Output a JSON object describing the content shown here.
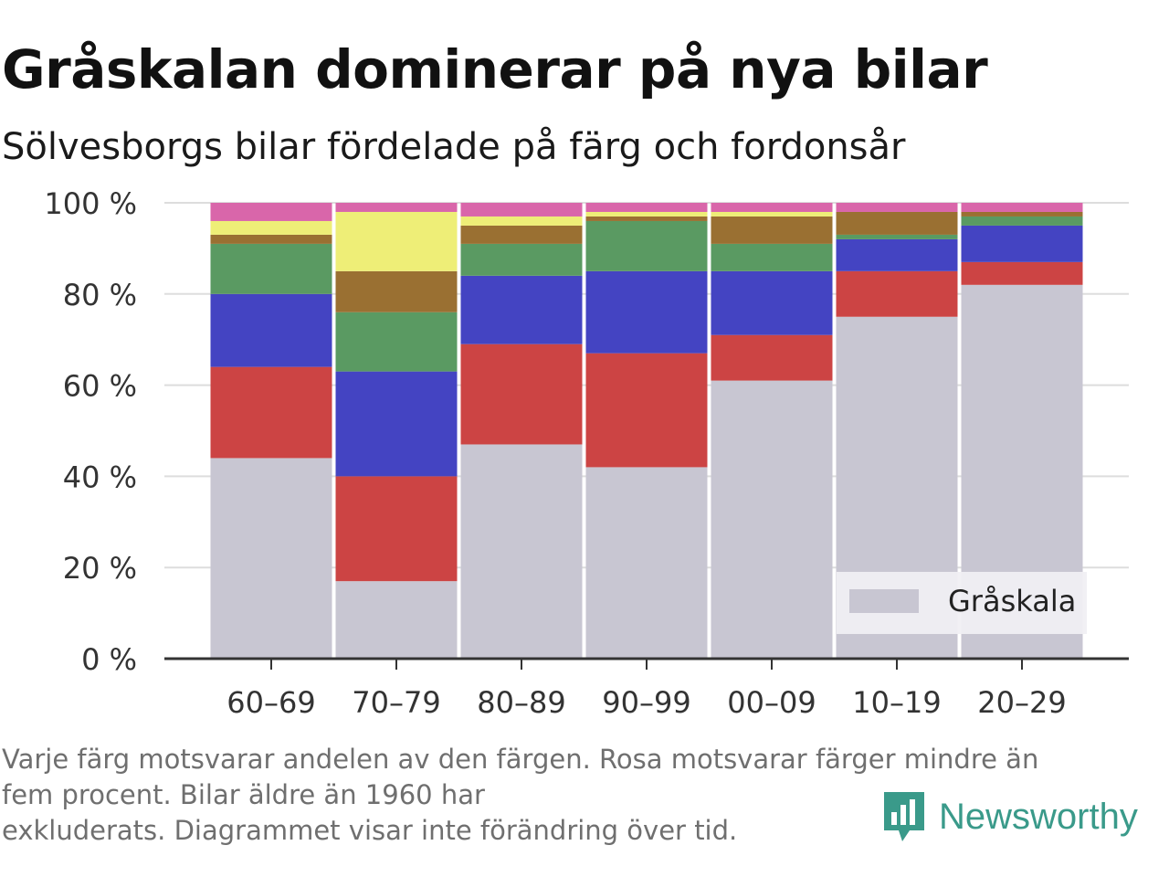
{
  "header": {
    "title": "Gråskalan dominerar på nya bilar",
    "subtitle": "Sölvesborgs bilar fördelade på färg och fordonsår"
  },
  "chart_data": {
    "type": "bar",
    "stacked": true,
    "categories": [
      "60–69",
      "70–79",
      "80–89",
      "90–99",
      "00–09",
      "10–19",
      "20–29"
    ],
    "y_ticks": [
      "0 %",
      "20 %",
      "40 %",
      "60 %",
      "80 %",
      "100 %"
    ],
    "ylim": [
      0,
      100
    ],
    "grid": "horizontal",
    "legend": {
      "position": "bottom-right",
      "entries": [
        "Gråskala"
      ]
    },
    "series": [
      {
        "name": "Gråskala",
        "color": "#c8c6d2",
        "values": [
          44,
          17,
          47,
          42,
          61,
          75,
          82
        ]
      },
      {
        "color": "#cc4444",
        "values": [
          20,
          23,
          22,
          25,
          10,
          10,
          5
        ]
      },
      {
        "color": "#4444c2",
        "values": [
          16,
          23,
          15,
          18,
          14,
          7,
          8
        ]
      },
      {
        "color": "#5a9a62",
        "values": [
          11,
          13,
          7,
          11,
          6,
          1,
          2
        ]
      },
      {
        "color": "#9a7032",
        "values": [
          2,
          9,
          4,
          1,
          6,
          5,
          1
        ]
      },
      {
        "color": "#eeee77",
        "values": [
          3,
          13,
          2,
          1,
          1,
          0,
          0
        ]
      },
      {
        "color": "#d966aa",
        "values": [
          4,
          2,
          3,
          2,
          2,
          2,
          2
        ]
      }
    ]
  },
  "footer": {
    "note_lines": [
      "Varje färg motsvarar andelen av den färgen. Rosa motsvarar färger mindre än",
      "fem procent. Bilar äldre än 1960 har",
      "exkluderats. Diagrammet visar inte förändring över tid."
    ],
    "brand": "Newsworthy",
    "brand_color": "#3a9a8a"
  }
}
